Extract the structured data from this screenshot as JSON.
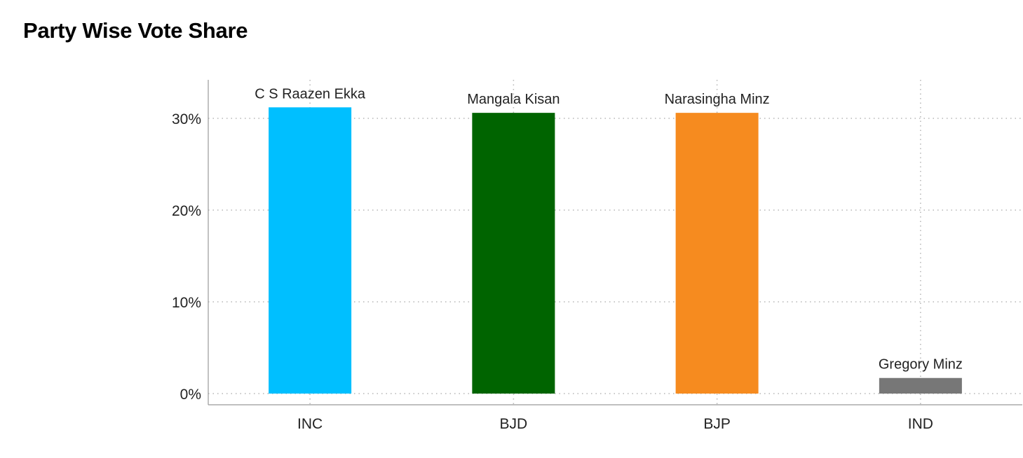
{
  "chart_data": {
    "type": "bar",
    "title": "Party Wise Vote Share",
    "xlabel": "",
    "ylabel": "",
    "categories": [
      "INC",
      "BJD",
      "BJP",
      "IND"
    ],
    "values": [
      31.2,
      30.6,
      30.6,
      1.7
    ],
    "data_labels": [
      "C S Raazen Ekka",
      "Mangala Kisan",
      "Narasingha Minz",
      "Gregory Minz"
    ],
    "colors": [
      "#00bfff",
      "#006400",
      "#f68b1f",
      "#777777"
    ],
    "ylim": [
      0,
      33
    ],
    "yticks": [
      0,
      10,
      20,
      30
    ],
    "ytick_labels": [
      "0%",
      "10%",
      "20%",
      "30%"
    ],
    "grid": true,
    "legend": "none"
  }
}
